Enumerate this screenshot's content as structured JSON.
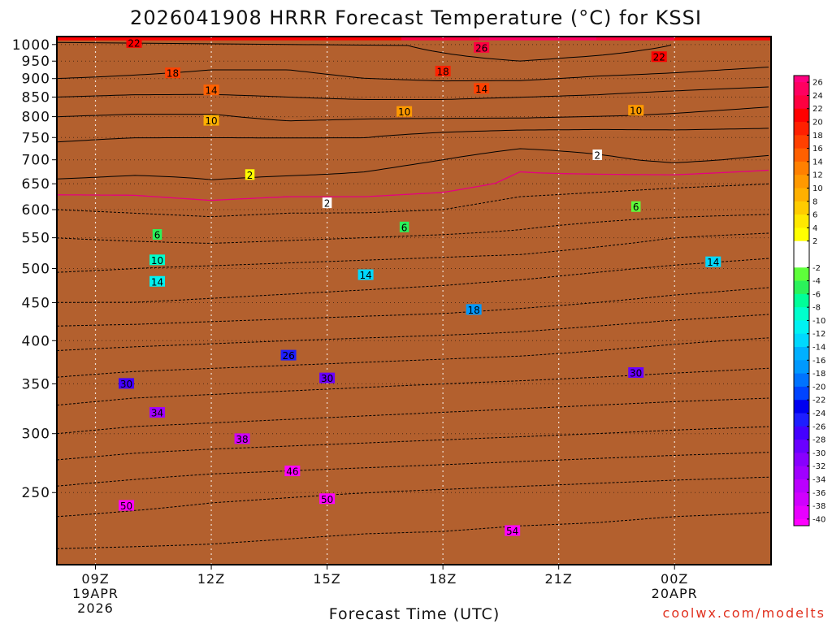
{
  "colors": {
    "neg": [
      "#5eff3a",
      "#2bf25a",
      "#00ff99",
      "#00ffcc",
      "#00f2f2",
      "#00d8ff",
      "#00b0ff",
      "#0099ff",
      "#0073ff",
      "#0044ff",
      "#0000f0",
      "#1e1eff",
      "#4400ff",
      "#6a00ff",
      "#8800ff",
      "#a000ff",
      "#bb00ff",
      "#d000ff",
      "#e800ff",
      "#ff00ff"
    ],
    "pos": [
      "#ffff00",
      "#ffe800",
      "#ffcc00",
      "#ffb000",
      "#ff9900",
      "#ff8000",
      "#ff6000",
      "#ff4000",
      "#ff2000",
      "#ff0000",
      "#ff0040",
      "#ff0060",
      "#ff0080"
    ],
    "zero_band": "#ffffff",
    "ground": "#b3602e",
    "zero_line": "#e60080",
    "contour": "#000000"
  },
  "chart_data": {
    "type": "heatmap",
    "title": "2026041908 HRRR Forecast Temperature (°C) for KSSI",
    "xlabel": "Forecast Time (UTC)",
    "credit": "coolwx.com/modelts",
    "x_range": [
      8,
      26.5
    ],
    "y_axis": {
      "type": "pressure",
      "units": "hPa",
      "range": [
        1025,
        200
      ],
      "scale": "log",
      "ticks": [
        250,
        300,
        350,
        400,
        450,
        500,
        550,
        600,
        650,
        700,
        750,
        800,
        850,
        900,
        950,
        1000
      ]
    },
    "x_ticks": [
      {
        "hour": 9,
        "label": "09Z",
        "sub1": "19APR",
        "sub2": "2026"
      },
      {
        "hour": 12,
        "label": "12Z",
        "sub1": "",
        "sub2": ""
      },
      {
        "hour": 15,
        "label": "15Z",
        "sub1": "",
        "sub2": ""
      },
      {
        "hour": 18,
        "label": "18Z",
        "sub1": "",
        "sub2": ""
      },
      {
        "hour": 21,
        "label": "21Z",
        "sub1": "",
        "sub2": ""
      },
      {
        "hour": 24,
        "label": "00Z",
        "sub1": "20APR",
        "sub2": ""
      }
    ],
    "colorbar": {
      "min": -41,
      "max": 27,
      "labels": [
        "26",
        "24",
        "22",
        "20",
        "18",
        "16",
        "14",
        "12",
        "10",
        "8",
        "6",
        "4",
        "2",
        "-2",
        "-4",
        "-6",
        "-8",
        "-10",
        "-12",
        "-14",
        "-16",
        "-18",
        "-20",
        "-22",
        "-24",
        "-26",
        "-28",
        "-30",
        "-32",
        "-34",
        "-36",
        "-38",
        "-40"
      ]
    },
    "profiles": {
      "pressures": [
        1000,
        950,
        900,
        850,
        800,
        750,
        700,
        650,
        600,
        550,
        500,
        450,
        400,
        350,
        300,
        250,
        200
      ],
      "times": [
        8,
        10,
        12,
        14,
        16,
        18,
        20,
        22,
        24,
        26.5
      ],
      "temperatures": [
        [
          22,
          21,
          20,
          20,
          21,
          23,
          25,
          24,
          22,
          20
        ],
        [
          21,
          20,
          19,
          19,
          20,
          21,
          22,
          21,
          20,
          19
        ],
        [
          18,
          17.5,
          17,
          17,
          18,
          18.5,
          18.5,
          17.5,
          17,
          16
        ],
        [
          14,
          13.5,
          13.5,
          14,
          14.5,
          14.5,
          14,
          13.5,
          12.5,
          11.5
        ],
        [
          10,
          9.5,
          9.5,
          11,
          10.5,
          10.5,
          10.5,
          10,
          9.5,
          8.5
        ],
        [
          6.5,
          6,
          6,
          6,
          6,
          4.5,
          3.5,
          3.5,
          4,
          4
        ],
        [
          4,
          3.5,
          3,
          3,
          2.5,
          2,
          0.5,
          1.5,
          2.5,
          1.5
        ],
        [
          1.5,
          1.2,
          1.8,
          1.5,
          1.5,
          1,
          -0.5,
          -1,
          -1.5,
          -2
        ],
        [
          -2,
          -1.5,
          -1,
          -1.5,
          -1.5,
          -2,
          -3.5,
          -4,
          -4.5,
          -5
        ],
        [
          -6,
          -5.5,
          -5,
          -5.5,
          -6,
          -6.5,
          -7,
          -8.5,
          -10,
          -11
        ],
        [
          -9.5,
          -10,
          -10.5,
          -11,
          -11.5,
          -12,
          -12.5,
          -13.5,
          -14.5,
          -15.5
        ],
        [
          -14,
          -14,
          -14.5,
          -15,
          -15.5,
          -16,
          -17,
          -18,
          -19,
          -20
        ],
        [
          -20.5,
          -21,
          -21.5,
          -22,
          -22.5,
          -23,
          -23.5,
          -24.5,
          -25.5,
          -26.5
        ],
        [
          -27,
          -28,
          -28.5,
          -29,
          -29.5,
          -30,
          -30.5,
          -31,
          -31.5,
          -32
        ],
        [
          -34,
          -35,
          -35.5,
          -36,
          -36.5,
          -37,
          -37.5,
          -38,
          -38.5,
          -39
        ],
        [
          -43,
          -44,
          -45,
          -45.5,
          -46,
          -46.5,
          -47,
          -47.5,
          -48,
          -48.5
        ],
        [
          -52,
          -52,
          -52,
          -52.5,
          -53,
          -53,
          -53.5,
          -53.5,
          -54,
          -54
        ]
      ]
    },
    "contour_labels": [
      {
        "text": "54",
        "t": 19.8,
        "p": 222
      },
      {
        "text": "50",
        "t": 9.8,
        "p": 240
      },
      {
        "text": "50",
        "t": 15,
        "p": 245
      },
      {
        "text": "46",
        "t": 14.1,
        "p": 267
      },
      {
        "text": "38",
        "t": 12.8,
        "p": 295
      },
      {
        "text": "34",
        "t": 10.6,
        "p": 320
      },
      {
        "text": "30",
        "t": 9.8,
        "p": 350
      },
      {
        "text": "30",
        "t": 15,
        "p": 356
      },
      {
        "text": "30",
        "t": 23,
        "p": 362
      },
      {
        "text": "26",
        "t": 14,
        "p": 382
      },
      {
        "text": "18",
        "t": 18.8,
        "p": 440
      },
      {
        "text": "14",
        "t": 10.6,
        "p": 480
      },
      {
        "text": "14",
        "t": 16,
        "p": 490
      },
      {
        "text": "14",
        "t": 25,
        "p": 510
      },
      {
        "text": "10",
        "t": 10.6,
        "p": 513
      },
      {
        "text": "6",
        "t": 10.6,
        "p": 555
      },
      {
        "text": "6",
        "t": 17,
        "p": 568
      },
      {
        "text": "6",
        "t": 23,
        "p": 605
      },
      {
        "text": "2",
        "t": 15,
        "p": 612
      },
      {
        "text": "2",
        "t": 13,
        "p": 668
      },
      {
        "text": "2",
        "t": 22,
        "p": 710
      },
      {
        "text": "10",
        "t": 12,
        "p": 790
      },
      {
        "text": "10",
        "t": 17,
        "p": 812
      },
      {
        "text": "10",
        "t": 23,
        "p": 815
      },
      {
        "text": "14",
        "t": 12,
        "p": 868
      },
      {
        "text": "14",
        "t": 19,
        "p": 872
      },
      {
        "text": "18",
        "t": 11,
        "p": 915
      },
      {
        "text": "18",
        "t": 18,
        "p": 920
      },
      {
        "text": "22",
        "t": 10,
        "p": 1005
      },
      {
        "text": "22",
        "t": 23.6,
        "p": 962
      },
      {
        "text": "26",
        "t": 19,
        "p": 990
      }
    ]
  }
}
